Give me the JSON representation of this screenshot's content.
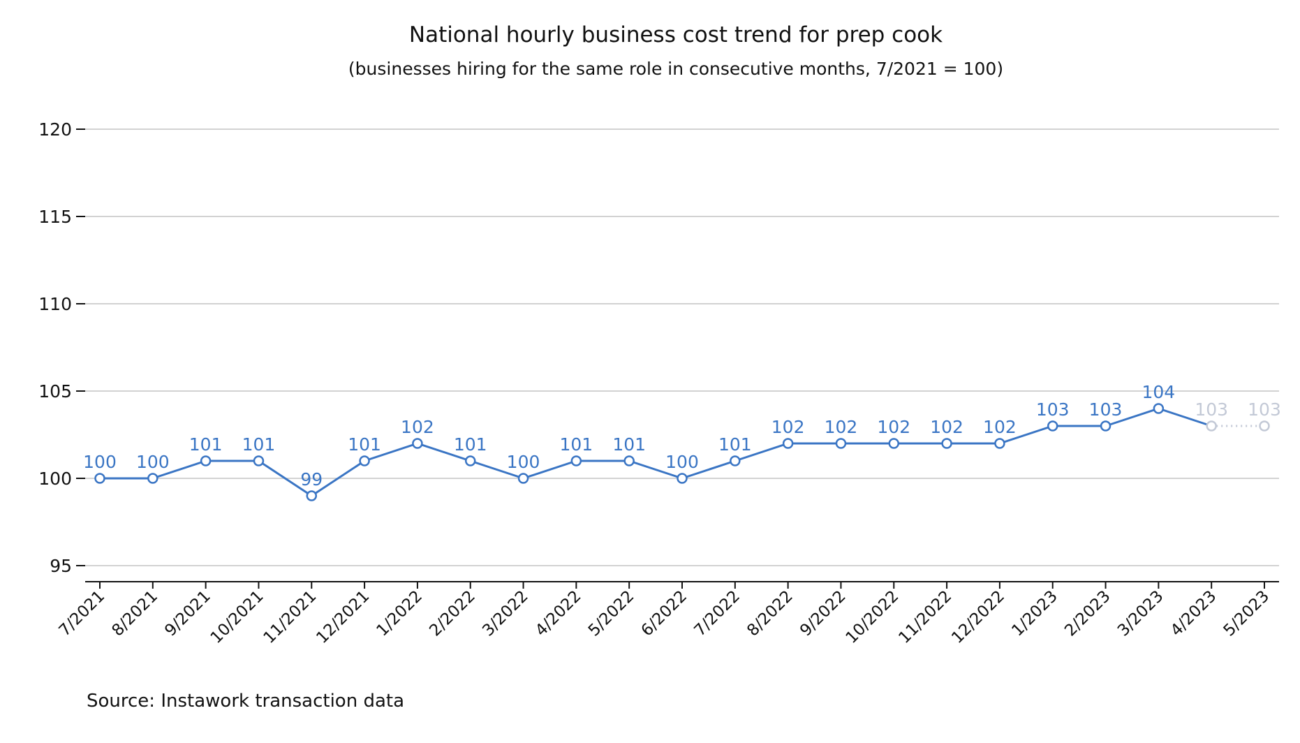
{
  "chart_data": {
    "type": "line",
    "title": "National hourly business cost trend for prep cook",
    "subtitle": "(businesses hiring for the same role in consecutive months, 7/2021 = 100)",
    "source": "Source: Instawork transaction data",
    "xlabel": "",
    "ylabel": "",
    "ylim": [
      94,
      120
    ],
    "yticks": [
      "95",
      "100",
      "105",
      "110",
      "115",
      "120"
    ],
    "grid": "horizontal",
    "categories": [
      "7/2021",
      "8/2021",
      "9/2021",
      "10/2021",
      "11/2021",
      "12/2021",
      "1/2022",
      "2/2022",
      "3/2022",
      "4/2022",
      "5/2022",
      "6/2022",
      "7/2022",
      "8/2022",
      "9/2022",
      "10/2022",
      "11/2022",
      "12/2022",
      "1/2023",
      "2/2023",
      "3/2023",
      "4/2023",
      "5/2023"
    ],
    "values": [
      100,
      100,
      101,
      101,
      99,
      101,
      102,
      101,
      100,
      101,
      101,
      100,
      101,
      102,
      102,
      102,
      102,
      102,
      103,
      103,
      104,
      103,
      103
    ],
    "labels": [
      "100",
      "100",
      "101",
      "101",
      "99",
      "101",
      "102",
      "101",
      "100",
      "101",
      "101",
      "100",
      "101",
      "102",
      "102",
      "102",
      "102",
      "102",
      "103",
      "103",
      "104",
      "103",
      "103"
    ],
    "preliminary_from_index": 21,
    "colors": {
      "line": "#3a75c4",
      "preliminary": "#c3c9d6",
      "grid": "#c4c4c4",
      "axis": "#111111"
    }
  }
}
